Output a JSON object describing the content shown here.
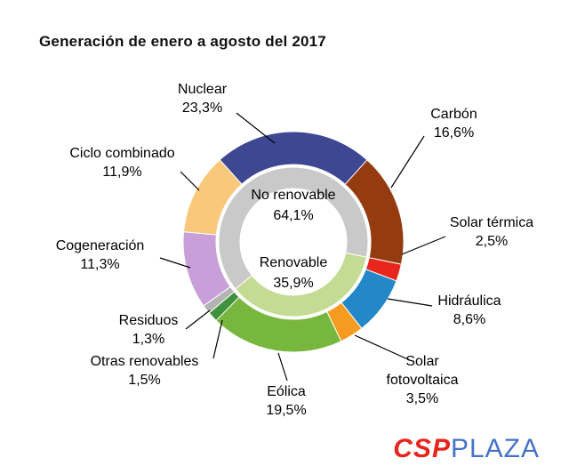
{
  "page": {
    "title": "Generación de enero a agosto del 2017"
  },
  "logo": {
    "csp": "CSP",
    "plaza": "PLAZA",
    "csp_color": "#e8251d",
    "plaza_color": "#4472c4"
  },
  "chart_data": {
    "type": "pie",
    "subtype": "double-donut",
    "title": "Generación de enero a agosto del 2017",
    "units": "%",
    "start_angle_deg": -41.9,
    "legend_position": "callout-labels",
    "segments": [
      {
        "label": "Nuclear",
        "value": 23.3,
        "display": "23,3%",
        "color": "#3e4791"
      },
      {
        "label": "Carbón",
        "value": 16.6,
        "display": "16,6%",
        "color": "#943b10"
      },
      {
        "label": "Solar térmica",
        "value": 2.5,
        "display": "2,5%",
        "color": "#e8261c"
      },
      {
        "label": "Hidráulica",
        "value": 8.6,
        "display": "8,6%",
        "color": "#2387c8"
      },
      {
        "label": "Solar fotovoltaica",
        "value": 3.5,
        "display": "3,5%",
        "color": "#f59b1f"
      },
      {
        "label": "Eólica",
        "value": 19.5,
        "display": "19,5%",
        "color": "#78b73d"
      },
      {
        "label": "Otras renovables",
        "value": 1.5,
        "display": "1,5%",
        "color": "#41913d"
      },
      {
        "label": "Residuos",
        "value": 1.3,
        "display": "1,3%",
        "color": "#b3b3b3"
      },
      {
        "label": "Cogeneración",
        "value": 11.3,
        "display": "11,3%",
        "color": "#c89fd8"
      },
      {
        "label": "Ciclo combinado",
        "value": 11.9,
        "display": "11,9%",
        "color": "#f9c87a"
      }
    ],
    "inner_ring": [
      {
        "label": "No renovable",
        "value": 64.1,
        "display": "64,1%",
        "color": "#c9c9c9"
      },
      {
        "label": "Renovable",
        "value": 35.9,
        "display": "35,9%",
        "color": "#c3db92"
      }
    ]
  }
}
